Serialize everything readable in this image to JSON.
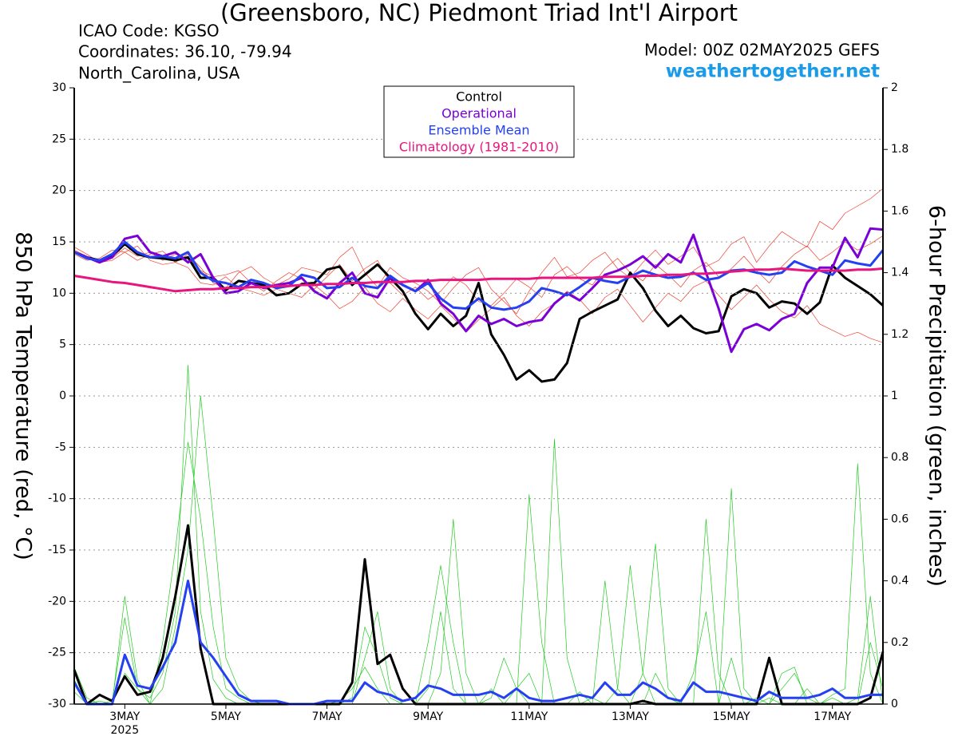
{
  "chart_data": {
    "type": "line",
    "title": "(Greensboro, NC) Piedmont Triad Int'l Airport",
    "info_left": [
      "ICAO Code: KGSO",
      "Coordinates: 36.10, -79.94",
      "North_Carolina, USA"
    ],
    "model": "Model: 00Z 02MAY2025 GEFS",
    "source": "weathertogether.net",
    "y_label": "850 hPa Temperature (red, °C)",
    "y2_label": "6-hour Precipitation (green, inches)",
    "x_sublabel": "2025",
    "grid": true,
    "legend": "top-center",
    "xlim": [
      2,
      18
    ],
    "xticks": [
      {
        "value": 3,
        "label": "3MAY"
      },
      {
        "value": 5,
        "label": "5MAY"
      },
      {
        "value": 7,
        "label": "7MAY"
      },
      {
        "value": 9,
        "label": "9MAY"
      },
      {
        "value": 11,
        "label": "11MAY"
      },
      {
        "value": 13,
        "label": "13MAY"
      },
      {
        "value": 15,
        "label": "15MAY"
      },
      {
        "value": 17,
        "label": "17MAY"
      }
    ],
    "ylim": [
      -30,
      30
    ],
    "yticks": [
      -30,
      -25,
      -20,
      -15,
      -10,
      -5,
      0,
      5,
      10,
      15,
      20,
      25,
      30
    ],
    "y2lim": [
      0,
      2
    ],
    "y2ticks": [
      0,
      0.2,
      0.4,
      0.6,
      0.8,
      1,
      1.2,
      1.4,
      1.6,
      1.8,
      2
    ],
    "x": [
      2,
      2.25,
      2.5,
      2.75,
      3,
      3.25,
      3.5,
      3.75,
      4,
      4.25,
      4.5,
      4.75,
      5,
      5.25,
      5.5,
      5.75,
      6,
      6.25,
      6.5,
      6.75,
      7,
      7.25,
      7.5,
      7.75,
      8,
      8.25,
      8.5,
      8.75,
      9,
      9.25,
      9.5,
      9.75,
      10,
      10.25,
      10.5,
      10.75,
      11,
      11.25,
      11.5,
      11.75,
      12,
      12.25,
      12.5,
      12.75,
      13,
      13.25,
      13.5,
      13.75,
      14,
      14.25,
      14.5,
      14.75,
      15,
      15.25,
      15.5,
      15.75,
      16,
      16.25,
      16.5,
      16.75,
      17,
      17.25,
      17.5,
      17.75,
      18
    ],
    "series": [
      {
        "color": "#22cc22",
        "style": "thin",
        "axis": "y2",
        "values": [
          0.08,
          0.0,
          0.0,
          0.01,
          0.28,
          0.05,
          0.0,
          0.2,
          0.5,
          0.85,
          0.6,
          0.25,
          0.05,
          0.02,
          0.0,
          0.0,
          0,
          0,
          0,
          0,
          0,
          0,
          0.02,
          0.25,
          0.15,
          0.02,
          0.0,
          0.0,
          0.05,
          0.3,
          0.05,
          0.0,
          0.0,
          0.02,
          0.15,
          0.05,
          0.0,
          0.0,
          0.0,
          0.0,
          0.04,
          0.0,
          0.4,
          0.05,
          0.0,
          0.0,
          0.1,
          0.02,
          0.0,
          0.0,
          0.6,
          0.1,
          0.0,
          0.0,
          0.02,
          0.0,
          0.05,
          0.1,
          0.02,
          0.0,
          0.03,
          0.05,
          0.78,
          0.1,
          0.0
        ]
      },
      {
        "color": "#22cc22",
        "style": "thin",
        "axis": "y2",
        "values": [
          0.12,
          0.02,
          0.0,
          0.0,
          0.1,
          0.05,
          0.02,
          0.1,
          0.3,
          1.1,
          0.3,
          0.08,
          0.02,
          0.0,
          0,
          0,
          0,
          0,
          0,
          0,
          0,
          0.01,
          0.05,
          0.12,
          0.05,
          0.0,
          0.0,
          0.0,
          0.0,
          0.1,
          0.6,
          0.1,
          0.0,
          0.05,
          0.0,
          0.0,
          0.68,
          0.2,
          0.0,
          0.0,
          0.0,
          0.02,
          0.0,
          0.0,
          0.0,
          0.1,
          0.52,
          0.05,
          0.0,
          0.0,
          0.0,
          0.0,
          0.15,
          0.0,
          0.0,
          0.02,
          0.0,
          0.0,
          0.05,
          0.0,
          0.0,
          0.0,
          0.0,
          0.2,
          0.05
        ]
      },
      {
        "color": "#22cc22",
        "style": "thin",
        "axis": "y2",
        "values": [
          0.04,
          0.0,
          0.01,
          0.0,
          0.35,
          0.08,
          0.0,
          0.05,
          0.25,
          0.5,
          1.0,
          0.6,
          0.15,
          0.05,
          0.01,
          0.0,
          0,
          0,
          0,
          0,
          0,
          0,
          0,
          0.15,
          0.3,
          0.05,
          0.0,
          0.0,
          0.2,
          0.45,
          0.2,
          0.0,
          0.0,
          0.0,
          0.0,
          0.05,
          0.1,
          0.0,
          0.86,
          0.15,
          0.0,
          0.0,
          0.0,
          0.05,
          0.45,
          0.1,
          0.0,
          0.0,
          0.0,
          0.1,
          0.3,
          0.0,
          0.7,
          0.05,
          0.0,
          0.0,
          0.1,
          0.12,
          0.0,
          0.0,
          0.02,
          0.0,
          0.02,
          0.35,
          0.0
        ]
      },
      {
        "color": "#f04030",
        "style": "thin",
        "values": [
          14.5,
          13.8,
          13.0,
          13.2,
          14.0,
          14.6,
          13.2,
          12.8,
          13.0,
          13.8,
          12.5,
          11.0,
          10.5,
          12.0,
          12.6,
          11.5,
          10.8,
          11.4,
          12.5,
          12.2,
          11.8,
          13.5,
          14.5,
          12.0,
          10.6,
          12.5,
          11.5,
          11.0,
          10.2,
          9.0,
          10.5,
          11.8,
          12.5,
          10.4,
          9.2,
          8.0,
          10.2,
          12.0,
          13.5,
          11.6,
          12.0,
          13.2,
          14.0,
          12.4,
          11.5,
          13.0,
          14.2,
          12.8,
          13.6,
          14.5,
          12.6,
          13.2,
          14.8,
          15.5,
          13.0,
          14.6,
          16.0,
          15.2,
          14.5,
          17.0,
          16.2,
          17.8,
          18.5,
          19.2,
          20.2
        ]
      },
      {
        "color": "#f04030",
        "style": "thin",
        "values": [
          13.8,
          13.2,
          13.4,
          14.2,
          14.0,
          13.2,
          13.8,
          14.1,
          13.0,
          12.5,
          11.0,
          10.8,
          11.6,
          10.5,
          10.2,
          9.8,
          10.4,
          10.0,
          9.6,
          10.8,
          9.8,
          8.5,
          9.2,
          10.6,
          9.0,
          8.2,
          9.5,
          8.4,
          7.5,
          8.8,
          7.6,
          6.2,
          7.4,
          8.5,
          9.6,
          7.8,
          6.8,
          8.2,
          9.0,
          10.2,
          9.4,
          8.0,
          9.6,
          10.4,
          8.8,
          7.2,
          8.6,
          10.0,
          9.2,
          10.6,
          11.2,
          9.8,
          8.4,
          9.6,
          10.8,
          9.4,
          8.2,
          7.6,
          8.8,
          7.0,
          6.4,
          5.8,
          6.2,
          5.6,
          5.2
        ]
      },
      {
        "color": "#f04030",
        "style": "thin",
        "values": [
          14.2,
          13.6,
          13.0,
          13.4,
          14.4,
          13.6,
          14.0,
          13.2,
          13.8,
          13.4,
          12.2,
          11.6,
          11.8,
          12.2,
          11.0,
          10.2,
          11.2,
          12.0,
          11.4,
          10.4,
          11.6,
          12.8,
          11.2,
          12.4,
          13.2,
          11.0,
          9.8,
          10.6,
          9.4,
          10.2,
          11.6,
          10.8,
          9.2,
          8.8,
          10.0,
          11.4,
          10.6,
          9.6,
          11.8,
          12.6,
          11.4,
          10.8,
          12.4,
          13.4,
          12.0,
          11.2,
          12.8,
          11.8,
          10.6,
          12.2,
          13.0,
          11.6,
          12.4,
          13.6,
          12.2,
          11.0,
          12.6,
          13.8,
          14.6,
          13.2,
          14.0,
          15.0,
          14.2,
          14.8,
          15.6
        ]
      },
      {
        "color": "#000000",
        "style": "thick",
        "axis": "y2",
        "values": [
          0.11,
          0.0,
          0.03,
          0.01,
          0.09,
          0.03,
          0.04,
          0.15,
          0.35,
          0.58,
          0.18,
          0.0,
          0,
          0,
          0,
          0,
          0,
          0,
          0,
          0,
          0,
          0,
          0.07,
          0.47,
          0.13,
          0.16,
          0.05,
          0,
          0,
          0,
          0,
          0,
          0,
          0,
          0,
          0,
          0,
          0,
          0,
          0,
          0,
          0,
          0,
          0,
          0,
          0.01,
          0,
          0,
          0,
          0,
          0,
          0,
          0,
          0,
          0,
          0.15,
          0,
          0,
          0,
          0,
          0,
          0,
          0,
          0.02,
          0.17
        ]
      },
      {
        "color": "#2440f0",
        "style": "thick",
        "axis": "y2",
        "values": [
          0.07,
          0.0,
          0.0,
          0.0,
          0.16,
          0.06,
          0.05,
          0.12,
          0.2,
          0.4,
          0.2,
          0.15,
          0.09,
          0.03,
          0.01,
          0.01,
          0.01,
          0,
          0,
          0,
          0.01,
          0.01,
          0.01,
          0.07,
          0.04,
          0.03,
          0.01,
          0.02,
          0.06,
          0.05,
          0.03,
          0.03,
          0.03,
          0.04,
          0.02,
          0.05,
          0.02,
          0.01,
          0.01,
          0.02,
          0.03,
          0.02,
          0.07,
          0.03,
          0.03,
          0.07,
          0.05,
          0.02,
          0.01,
          0.07,
          0.04,
          0.04,
          0.03,
          0.02,
          0.01,
          0.04,
          0.02,
          0.02,
          0.02,
          0.03,
          0.05,
          0.02,
          0.02,
          0.03,
          0.03
        ]
      },
      {
        "name": "Control",
        "color": "#000000",
        "style": "thick",
        "values": [
          14.0,
          13.5,
          13.2,
          13.6,
          14.8,
          13.8,
          13.5,
          13.4,
          13.2,
          13.5,
          11.5,
          11.5,
          10.3,
          11.2,
          11.0,
          10.8,
          9.8,
          10.0,
          10.9,
          11.0,
          12.3,
          12.6,
          10.8,
          11.8,
          12.8,
          11.5,
          10.2,
          8.0,
          6.5,
          8.0,
          6.8,
          7.8,
          11.0,
          6.0,
          4.0,
          1.6,
          2.5,
          1.4,
          1.6,
          3.2,
          7.5,
          8.2,
          8.8,
          9.4,
          12.0,
          10.5,
          8.3,
          6.8,
          7.8,
          6.6,
          6.1,
          6.3,
          9.7,
          10.4,
          10.0,
          8.6,
          9.2,
          9.0,
          8.0,
          9.1,
          12.7,
          11.5,
          10.7,
          9.9,
          8.8
        ]
      },
      {
        "name": "Operational",
        "color": "#7a00d6",
        "style": "thick",
        "values": [
          14.0,
          13.5,
          13.0,
          13.5,
          15.3,
          15.6,
          14.0,
          13.6,
          14.0,
          13.0,
          13.8,
          11.5,
          10.0,
          10.2,
          11.0,
          10.5,
          10.8,
          11.0,
          11.5,
          10.2,
          9.5,
          11.0,
          12.0,
          10.0,
          9.6,
          11.5,
          10.8,
          10.2,
          11.3,
          9.0,
          8.0,
          6.3,
          7.8,
          7.0,
          7.5,
          6.8,
          7.2,
          7.4,
          9.0,
          10.0,
          9.3,
          10.5,
          11.8,
          12.2,
          12.8,
          13.6,
          12.5,
          13.8,
          13.0,
          15.7,
          12.0,
          8.5,
          4.3,
          6.5,
          7.0,
          6.4,
          7.5,
          8.0,
          11.0,
          12.5,
          12.5,
          15.4,
          13.5,
          16.3,
          16.2
        ]
      },
      {
        "name": "Ensemble Mean",
        "color": "#2440f0",
        "style": "thick",
        "values": [
          14.0,
          13.4,
          13.2,
          13.8,
          15.0,
          14.0,
          13.5,
          13.6,
          13.4,
          14.0,
          12.0,
          11.2,
          11.0,
          10.6,
          11.3,
          11.0,
          10.5,
          10.7,
          11.8,
          11.5,
          10.5,
          10.6,
          11.5,
          10.7,
          10.5,
          11.7,
          10.8,
          10.2,
          11.0,
          9.5,
          8.6,
          8.5,
          9.5,
          8.6,
          8.4,
          8.6,
          9.2,
          10.5,
          10.2,
          9.8,
          10.6,
          11.5,
          11.2,
          11.0,
          11.6,
          12.2,
          11.8,
          11.5,
          11.6,
          12.0,
          11.3,
          11.5,
          12.2,
          12.3,
          12.0,
          11.8,
          12.0,
          13.1,
          12.6,
          12.2,
          11.8,
          13.2,
          12.9,
          12.7,
          14.2
        ]
      },
      {
        "name": "Climatology (1981-2010)",
        "color": "#e8157e",
        "style": "thick",
        "values": [
          11.7,
          11.5,
          11.3,
          11.1,
          11.0,
          10.8,
          10.6,
          10.4,
          10.2,
          10.3,
          10.4,
          10.4,
          10.5,
          10.5,
          10.6,
          10.6,
          10.7,
          10.7,
          10.8,
          10.8,
          10.9,
          10.9,
          11.0,
          11.0,
          11.1,
          11.1,
          11.1,
          11.2,
          11.2,
          11.3,
          11.3,
          11.3,
          11.3,
          11.4,
          11.4,
          11.4,
          11.4,
          11.5,
          11.5,
          11.5,
          11.5,
          11.5,
          11.6,
          11.6,
          11.6,
          11.7,
          11.7,
          11.8,
          11.8,
          11.9,
          11.9,
          12.0,
          12.1,
          12.2,
          12.3,
          12.3,
          12.4,
          12.3,
          12.2,
          12.2,
          12.2,
          12.2,
          12.3,
          12.3,
          12.4
        ]
      }
    ]
  }
}
